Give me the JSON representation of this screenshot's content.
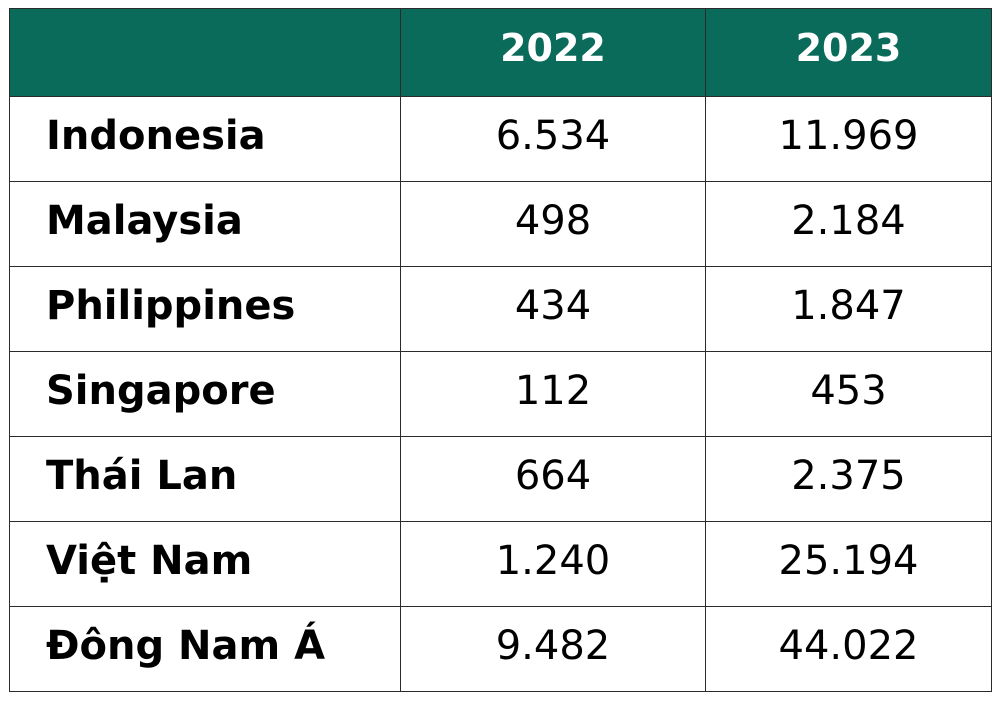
{
  "table": {
    "header": [
      "",
      "2022",
      "2023"
    ],
    "rows": [
      {
        "label": "Indonesia",
        "y2022": "6.534",
        "y2023": "11.969"
      },
      {
        "label": "Malaysia",
        "y2022": "498",
        "y2023": "2.184"
      },
      {
        "label": "Philippines",
        "y2022": "434",
        "y2023": "1.847"
      },
      {
        "label": "Singapore",
        "y2022": "112",
        "y2023": "453"
      },
      {
        "label": "Thái Lan",
        "y2022": "664",
        "y2023": "2.375"
      },
      {
        "label": "Việt Nam",
        "y2022": "1.240",
        "y2023": "25.194"
      },
      {
        "label": "Đông Nam Á",
        "y2022": "9.482",
        "y2023": "44.022"
      }
    ]
  },
  "colors": {
    "header_background": "#0b6b5a",
    "header_text": "#ffffff",
    "border": "#2b2b2b"
  }
}
